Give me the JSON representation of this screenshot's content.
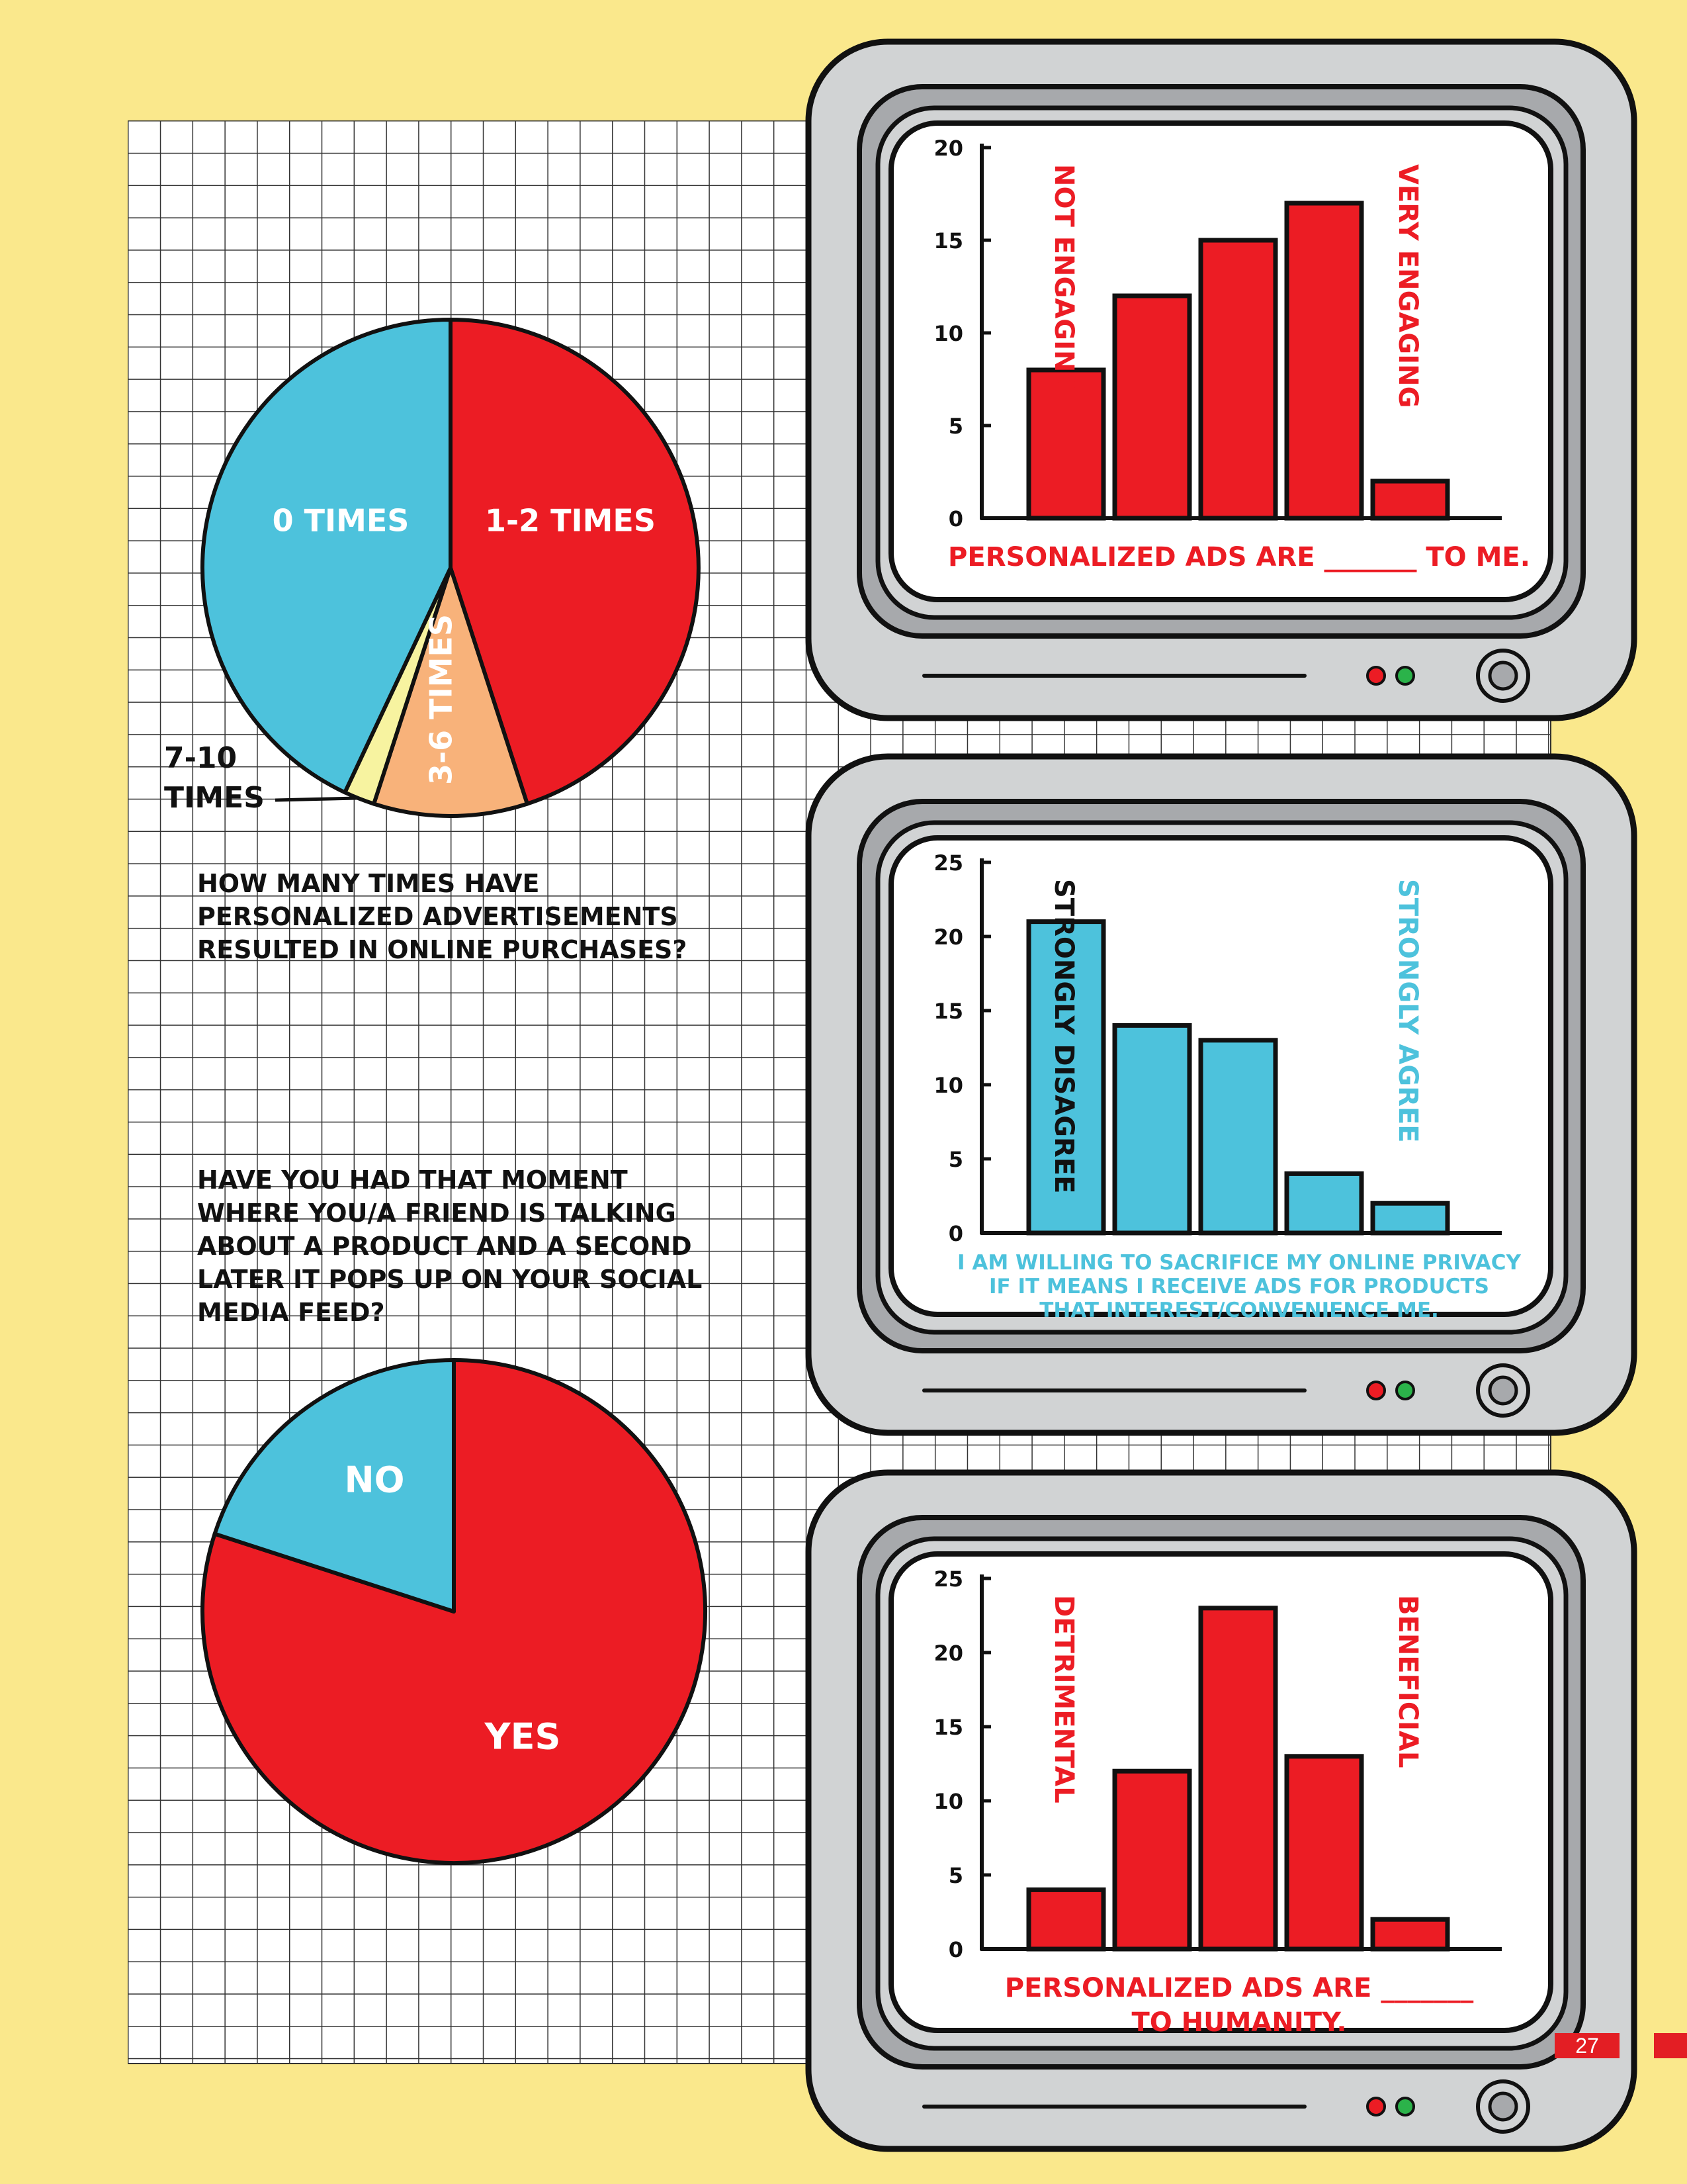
{
  "colors": {
    "background": "#FAE88C",
    "red": "#EC1C24",
    "blue": "#4DC2DC",
    "orange": "#F8B27A",
    "pale_yellow": "#F7F3A0",
    "monitor_gray": "#D1D3D4",
    "monitor_dark": "#A7A9AC",
    "led_red": "#EC1C24",
    "led_green": "#2BB34A"
  },
  "questions": {
    "q1": "HOW MANY TIMES HAVE PERSONALIZED ADVERTISEMENTS RESULTED IN ONLINE PURCHASES?",
    "q2": "HAVE YOU HAD THAT MOMENT WHERE YOU/A FRIEND IS TALKING ABOUT A PRODUCT AND A SECOND LATER IT POPS UP ON YOUR SOCIAL MEDIA FEED?"
  },
  "chart_data": [
    {
      "type": "pie",
      "labels": [
        "1-2 TIMES",
        "3-6 TIMES",
        "7-10 TIMES",
        "0 TIMES"
      ],
      "values": [
        45,
        10,
        2,
        43
      ],
      "colors": [
        "#EC1C24",
        "#F8B27A",
        "#F7F3A0",
        "#4DC2DC"
      ]
    },
    {
      "type": "pie",
      "labels": [
        "YES",
        "NO"
      ],
      "values": [
        80,
        20
      ],
      "colors": [
        "#EC1C24",
        "#4DC2DC"
      ]
    },
    {
      "type": "bar",
      "values": [
        8,
        12,
        15,
        17,
        2
      ],
      "ylim": [
        0,
        20
      ],
      "yticks": [
        0,
        5,
        10,
        15,
        20
      ],
      "low_label": "NOT ENGAGING",
      "high_label": "VERY ENGAGING",
      "caption": [
        "PERSONALIZED ADS ARE _______ TO ME."
      ],
      "bar_color": "#EC1C24",
      "label_color": "#EC1C24",
      "low_label_color": "#EC1C24",
      "caption_color": "#EC1C24"
    },
    {
      "type": "bar",
      "values": [
        21,
        14,
        13,
        4,
        2
      ],
      "ylim": [
        0,
        25
      ],
      "yticks": [
        0,
        5,
        10,
        15,
        20,
        25
      ],
      "low_label": "STRONGLY DISAGREE",
      "high_label": "STRONGLY AGREE",
      "caption": [
        "I AM WILLING TO SACRIFICE MY ONLINE PRIVACY",
        "IF IT MEANS I RECEIVE ADS FOR PRODUCTS",
        "THAT INTEREST/CONVENIENCE ME."
      ],
      "bar_color": "#4DC2DC",
      "label_color": "#4DC2DC",
      "low_label_color": "#111111",
      "caption_color": "#4DC2DC"
    },
    {
      "type": "bar",
      "values": [
        4,
        12,
        23,
        13,
        2
      ],
      "ylim": [
        0,
        25
      ],
      "yticks": [
        0,
        5,
        10,
        15,
        20,
        25
      ],
      "low_label": "DETRIMENTAL",
      "high_label": "BENEFICIAL",
      "caption": [
        "PERSONALIZED ADS ARE _______",
        "TO HUMANITY."
      ],
      "bar_color": "#EC1C24",
      "label_color": "#EC1C24",
      "low_label_color": "#EC1C24",
      "caption_color": "#EC1C24"
    }
  ],
  "page_number": "27"
}
